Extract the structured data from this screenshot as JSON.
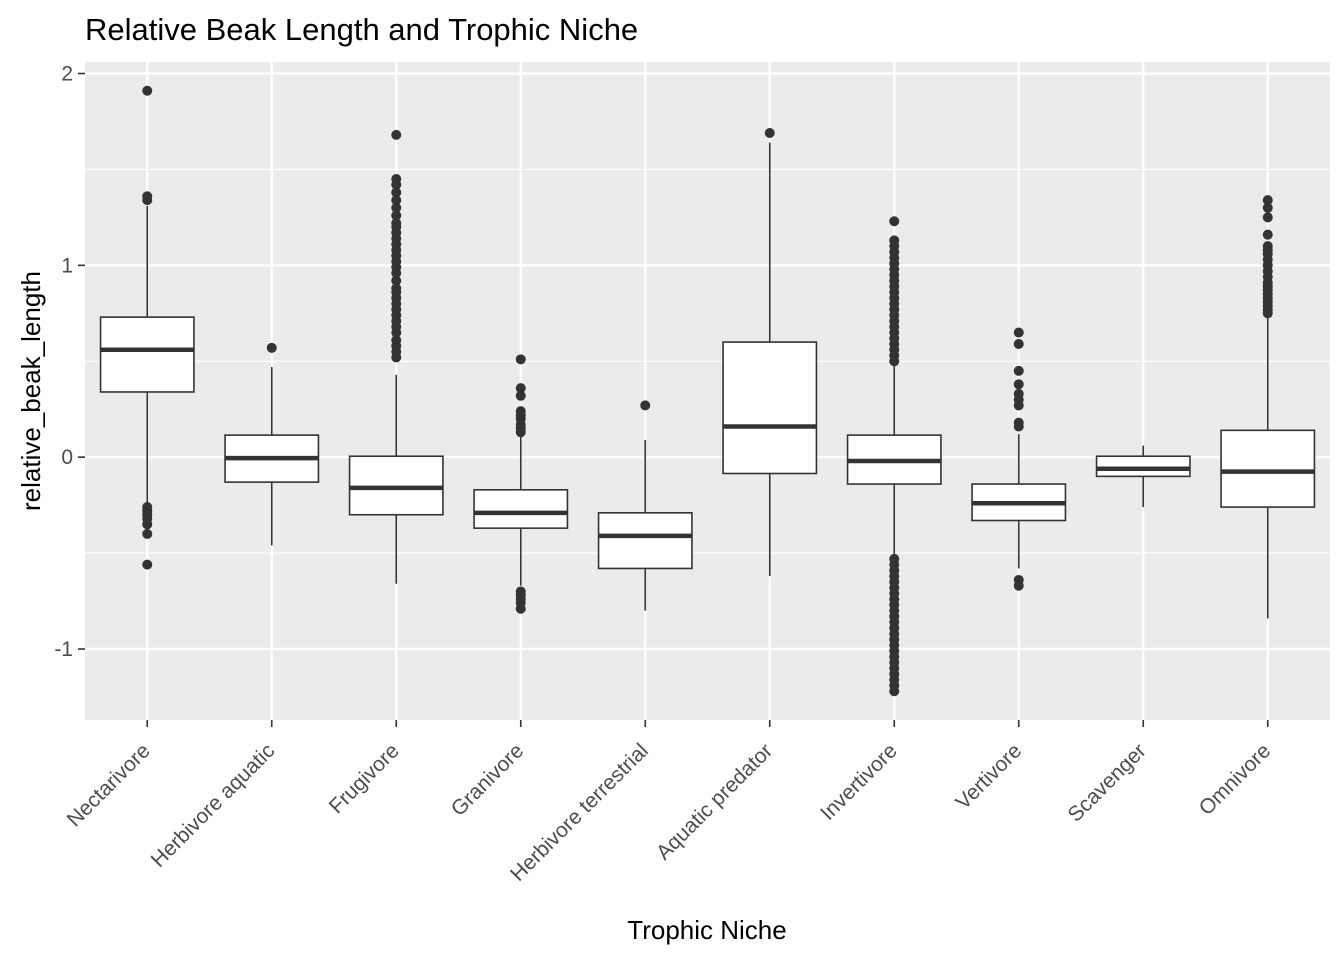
{
  "chart_data": {
    "type": "box",
    "title": "Relative Beak Length and Trophic Niche",
    "xlabel": "Trophic Niche",
    "ylabel": "relative_beak_length",
    "ylim": [
      -1.37,
      2.06
    ],
    "yticks": [
      -1,
      0,
      1,
      2
    ],
    "ytick_labels": [
      "-1",
      "0",
      "1",
      "2"
    ],
    "grid": true,
    "colors": {
      "panel_background": "#ebebeb",
      "grid": "#ffffff",
      "box_fill": "#ffffff",
      "box_line": "#333333",
      "outlier": "#333333",
      "tick_text": "#4d4d4d"
    },
    "categories": [
      "Nectarivore",
      "Herbivore aquatic",
      "Frugivore",
      "Granivore",
      "Herbivore terrestrial",
      "Aquatic predator",
      "Invertivore",
      "Vertivore",
      "Scavenger",
      "Omnivore"
    ],
    "boxes": [
      {
        "category": "Nectarivore",
        "q1": 0.34,
        "median": 0.56,
        "q3": 0.73,
        "whisker_low": -0.24,
        "whisker_high": 1.31,
        "outliers": [
          1.91,
          1.36,
          1.34,
          -0.26,
          -0.28,
          -0.3,
          -0.32,
          -0.35,
          -0.4,
          -0.56
        ]
      },
      {
        "category": "Herbivore aquatic",
        "q1": -0.13,
        "median": -0.005,
        "q3": 0.115,
        "whisker_low": -0.46,
        "whisker_high": 0.47,
        "outliers": [
          0.57
        ]
      },
      {
        "category": "Frugivore",
        "q1": -0.3,
        "median": -0.16,
        "q3": 0.005,
        "whisker_low": -0.66,
        "whisker_high": 0.43,
        "outliers": [
          1.68,
          1.45,
          1.42,
          1.38,
          1.34,
          1.3,
          1.26,
          1.22,
          1.2,
          1.17,
          1.14,
          1.11,
          1.08,
          1.05,
          1.02,
          0.99,
          0.96,
          0.92,
          0.88,
          0.86,
          0.83,
          0.8,
          0.77,
          0.74,
          0.71,
          0.68,
          0.65,
          0.61,
          0.58,
          0.55,
          0.52
        ]
      },
      {
        "category": "Granivore",
        "q1": -0.37,
        "median": -0.29,
        "q3": -0.17,
        "whisker_low": -0.67,
        "whisker_high": 0.11,
        "outliers": [
          0.51,
          0.36,
          0.32,
          0.24,
          0.22,
          0.2,
          0.17,
          0.15,
          0.13,
          -0.7,
          -0.72,
          -0.74,
          -0.76,
          -0.79
        ]
      },
      {
        "category": "Herbivore terrestrial",
        "q1": -0.58,
        "median": -0.41,
        "q3": -0.29,
        "whisker_low": -0.8,
        "whisker_high": 0.09,
        "outliers": [
          0.27
        ]
      },
      {
        "category": "Aquatic predator",
        "q1": -0.085,
        "median": 0.16,
        "q3": 0.6,
        "whisker_low": -0.62,
        "whisker_high": 1.64,
        "outliers": [
          1.69
        ]
      },
      {
        "category": "Invertivore",
        "q1": -0.14,
        "median": -0.02,
        "q3": 0.115,
        "whisker_low": -0.51,
        "whisker_high": 0.48,
        "outliers": [
          1.23,
          1.13,
          1.1,
          1.07,
          1.04,
          1.01,
          0.98,
          0.95,
          0.92,
          0.89,
          0.86,
          0.83,
          0.8,
          0.77,
          0.74,
          0.71,
          0.68,
          0.65,
          0.62,
          0.59,
          0.56,
          0.53,
          0.5,
          -0.53,
          -0.56,
          -0.59,
          -0.62,
          -0.65,
          -0.68,
          -0.71,
          -0.74,
          -0.77,
          -0.8,
          -0.83,
          -0.86,
          -0.89,
          -0.92,
          -0.95,
          -0.98,
          -1.01,
          -1.04,
          -1.07,
          -1.1,
          -1.13,
          -1.16,
          -1.19,
          -1.22
        ]
      },
      {
        "category": "Vertivore",
        "q1": -0.33,
        "median": -0.24,
        "q3": -0.14,
        "whisker_low": -0.58,
        "whisker_high": 0.12,
        "outliers": [
          0.65,
          0.59,
          0.45,
          0.38,
          0.33,
          0.3,
          0.27,
          0.18,
          0.16,
          -0.64,
          -0.67
        ]
      },
      {
        "category": "Scavenger",
        "q1": -0.1,
        "median": -0.06,
        "q3": 0.005,
        "whisker_low": -0.26,
        "whisker_high": 0.06,
        "outliers": []
      },
      {
        "category": "Omnivore",
        "q1": -0.26,
        "median": -0.075,
        "q3": 0.14,
        "whisker_low": -0.84,
        "whisker_high": 0.74,
        "outliers": [
          1.34,
          1.3,
          1.25,
          1.16,
          1.1,
          1.08,
          1.06,
          1.03,
          1.0,
          0.97,
          0.94,
          0.91,
          0.89,
          0.87,
          0.85,
          0.83,
          0.81,
          0.79,
          0.77,
          0.75
        ]
      }
    ]
  }
}
